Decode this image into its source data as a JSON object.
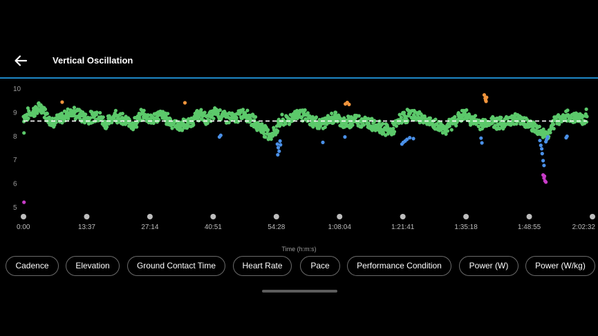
{
  "header": {
    "back_icon": "arrow-left-icon",
    "title": "Vertical Oscillation",
    "accent_color": "#1e88c8"
  },
  "chart_data": {
    "type": "scatter",
    "title": "",
    "xlabel": "Time (h:m:s)",
    "ylabel": "",
    "ylim": [
      4.6,
      10
    ],
    "y_ticks": [
      "5",
      "6",
      "7",
      "8",
      "9",
      "10"
    ],
    "x_ticks": [
      "0:00",
      "13:37",
      "27:14",
      "40:51",
      "54:28",
      "1:08:04",
      "1:21:41",
      "1:35:18",
      "1:48:55",
      "2:02:32"
    ],
    "average_line": 8.62,
    "grid": false,
    "colors": {
      "green": "#5cc96b",
      "blue": "#4a90e8",
      "orange": "#f0943c",
      "magenta": "#c83cc8",
      "average": "#ffffff"
    },
    "trend_minutes": [
      0,
      2,
      4,
      6,
      8,
      10,
      12,
      14,
      16,
      18,
      20,
      22,
      24,
      26,
      28,
      30,
      32,
      34,
      36,
      38,
      40,
      42,
      44,
      46,
      48,
      50,
      52,
      54,
      56,
      58,
      60,
      62,
      64,
      66,
      68,
      70,
      72,
      74,
      76,
      78,
      80,
      82,
      84,
      86,
      88,
      90,
      92,
      94,
      96,
      98,
      100,
      102,
      104,
      106,
      108,
      110,
      112,
      114,
      116,
      118,
      120,
      122.5
    ],
    "trend_values": [
      8.8,
      9.0,
      9.2,
      8.6,
      8.7,
      9.0,
      8.9,
      8.7,
      8.9,
      8.5,
      8.9,
      8.6,
      8.5,
      8.9,
      8.7,
      8.9,
      8.6,
      8.4,
      8.5,
      8.9,
      8.7,
      9.0,
      8.8,
      8.7,
      9.0,
      8.6,
      8.3,
      8.0,
      8.6,
      8.7,
      9.0,
      8.7,
      8.5,
      8.6,
      8.8,
      8.5,
      8.7,
      8.6,
      8.5,
      8.3,
      8.2,
      8.7,
      8.9,
      8.8,
      8.6,
      8.4,
      8.3,
      8.7,
      8.9,
      8.6,
      8.5,
      8.6,
      8.5,
      8.7,
      8.7,
      8.5,
      8.2,
      8.0,
      8.7,
      8.8,
      8.8,
      8.7
    ],
    "outliers": [
      {
        "minute": 0.1,
        "value": 8.12,
        "color": "green"
      },
      {
        "minute": 0.1,
        "value": 5.2,
        "color": "magenta"
      },
      {
        "minute": 8.4,
        "value": 9.42,
        "color": "orange"
      },
      {
        "minute": 35.1,
        "value": 9.39,
        "color": "orange"
      },
      {
        "minute": 42.6,
        "value": 7.95,
        "color": "blue"
      },
      {
        "minute": 42.9,
        "value": 8.02,
        "color": "blue"
      },
      {
        "minute": 55.2,
        "value": 7.65,
        "color": "blue"
      },
      {
        "minute": 55.4,
        "value": 7.5,
        "color": "blue"
      },
      {
        "minute": 55.6,
        "value": 7.35,
        "color": "blue"
      },
      {
        "minute": 55.3,
        "value": 7.2,
        "color": "blue"
      },
      {
        "minute": 55.8,
        "value": 7.78,
        "color": "blue"
      },
      {
        "minute": 55.9,
        "value": 7.62,
        "color": "blue"
      },
      {
        "minute": 65.1,
        "value": 7.72,
        "color": "blue"
      },
      {
        "minute": 70.0,
        "value": 9.34,
        "color": "orange"
      },
      {
        "minute": 70.4,
        "value": 9.4,
        "color": "orange"
      },
      {
        "minute": 70.8,
        "value": 9.32,
        "color": "orange"
      },
      {
        "minute": 69.9,
        "value": 7.95,
        "color": "blue"
      },
      {
        "minute": 82.3,
        "value": 7.65,
        "color": "blue"
      },
      {
        "minute": 82.6,
        "value": 7.72,
        "color": "blue"
      },
      {
        "minute": 83.0,
        "value": 7.78,
        "color": "blue"
      },
      {
        "minute": 83.4,
        "value": 7.85,
        "color": "blue"
      },
      {
        "minute": 84.0,
        "value": 7.92,
        "color": "blue"
      },
      {
        "minute": 84.8,
        "value": 7.88,
        "color": "blue"
      },
      {
        "minute": 99.5,
        "value": 7.9,
        "color": "blue"
      },
      {
        "minute": 99.7,
        "value": 7.7,
        "color": "blue"
      },
      {
        "minute": 100.2,
        "value": 9.72,
        "color": "orange"
      },
      {
        "minute": 100.4,
        "value": 9.58,
        "color": "orange"
      },
      {
        "minute": 100.5,
        "value": 9.5,
        "color": "orange"
      },
      {
        "minute": 100.7,
        "value": 9.62,
        "color": "orange"
      },
      {
        "minute": 100.6,
        "value": 9.45,
        "color": "orange"
      },
      {
        "minute": 112.3,
        "value": 7.8,
        "color": "blue"
      },
      {
        "minute": 112.5,
        "value": 7.6,
        "color": "blue"
      },
      {
        "minute": 112.7,
        "value": 7.45,
        "color": "blue"
      },
      {
        "minute": 112.8,
        "value": 7.25,
        "color": "blue"
      },
      {
        "minute": 113.0,
        "value": 6.95,
        "color": "blue"
      },
      {
        "minute": 113.2,
        "value": 6.75,
        "color": "blue"
      },
      {
        "minute": 113.6,
        "value": 7.75,
        "color": "blue"
      },
      {
        "minute": 113.8,
        "value": 7.85,
        "color": "blue"
      },
      {
        "minute": 114.0,
        "value": 7.95,
        "color": "blue"
      },
      {
        "minute": 113.0,
        "value": 6.35,
        "color": "magenta"
      },
      {
        "minute": 113.2,
        "value": 6.22,
        "color": "magenta"
      },
      {
        "minute": 113.4,
        "value": 6.1,
        "color": "magenta"
      },
      {
        "minute": 113.6,
        "value": 6.05,
        "color": "magenta"
      },
      {
        "minute": 113.3,
        "value": 6.3,
        "color": "magenta"
      },
      {
        "minute": 118.0,
        "value": 7.92,
        "color": "blue"
      },
      {
        "minute": 118.2,
        "value": 7.98,
        "color": "blue"
      },
      {
        "minute": 122.4,
        "value": 9.12,
        "color": "green"
      }
    ]
  },
  "chips": [
    {
      "label": "Cadence"
    },
    {
      "label": "Elevation"
    },
    {
      "label": "Ground Contact Time"
    },
    {
      "label": "Heart Rate"
    },
    {
      "label": "Pace"
    },
    {
      "label": "Performance Condition"
    },
    {
      "label": "Power (W)"
    },
    {
      "label": "Power (W/kg)"
    }
  ]
}
